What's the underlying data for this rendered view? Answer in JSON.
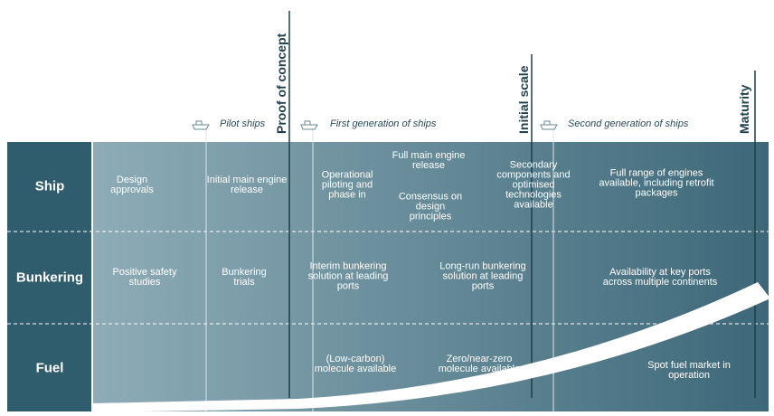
{
  "milestones": [
    "Proof of concept",
    "Initial scale",
    "Maturity"
  ],
  "generations": [
    "Pilot ships",
    "First generation of ships",
    "Second generation of ships"
  ],
  "rows": [
    {
      "label": "Ship",
      "items": [
        "Design approvals",
        "Initial main engine release",
        "Operational piloting and phase in",
        "Full main engine release",
        "Consensus on design principles",
        "Secondary components and optimised technologies available",
        "Full range of engines available, including retrofit packages"
      ]
    },
    {
      "label": "Bunkering",
      "items": [
        "Positive safety studies",
        "Bunkering trials",
        "Interim bunkering solution at leading ports",
        "Long-run bunkering solution at leading ports",
        "Availability at key ports across multiple continents"
      ]
    },
    {
      "label": "Fuel",
      "items": [
        "(Low-carbon) molecule available",
        "Zero/near-zero molecule available",
        "Spot fuel market in operation"
      ]
    }
  ]
}
